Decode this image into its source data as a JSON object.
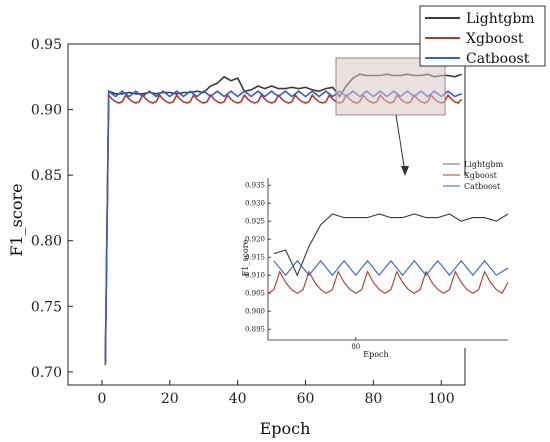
{
  "chart_data": [
    {
      "type": "line",
      "title": "",
      "xlabel": "Epoch",
      "ylabel": "F1_score",
      "xlim": [
        -10,
        107
      ],
      "ylim": [
        0.69,
        0.95
      ],
      "xticks": [
        "0",
        "20",
        "40",
        "60",
        "80",
        "100"
      ],
      "yticks": [
        "0.70",
        "0.75",
        "0.80",
        "0.85",
        "0.90",
        "0.95"
      ],
      "grid": false,
      "legend": "top-right",
      "series": [
        {
          "name": "Lightgbm",
          "color": "#3a3a3a",
          "x": [
            1,
            2,
            4,
            6,
            8,
            10,
            12,
            14,
            16,
            18,
            20,
            22,
            24,
            26,
            28,
            30,
            32,
            34,
            36,
            38,
            40,
            42,
            44,
            46,
            48,
            50,
            52,
            54,
            56,
            58,
            60,
            62,
            64,
            66,
            68,
            70,
            72,
            74,
            76,
            78,
            80,
            82,
            84,
            86,
            88,
            90,
            92,
            94,
            96,
            98,
            100,
            102,
            104,
            106
          ],
          "values": [
            0.706,
            0.914,
            0.912,
            0.912,
            0.913,
            0.912,
            0.912,
            0.913,
            0.912,
            0.913,
            0.913,
            0.912,
            0.913,
            0.913,
            0.914,
            0.913,
            0.918,
            0.92,
            0.925,
            0.922,
            0.924,
            0.914,
            0.915,
            0.918,
            0.916,
            0.918,
            0.916,
            0.916,
            0.917,
            0.916,
            0.917,
            0.915,
            0.914,
            0.916,
            0.917,
            0.91,
            0.918,
            0.924,
            0.927,
            0.926,
            0.926,
            0.926,
            0.927,
            0.926,
            0.926,
            0.927,
            0.926,
            0.926,
            0.927,
            0.925,
            0.926,
            0.926,
            0.925,
            0.927
          ]
        },
        {
          "name": "Xgboost",
          "color": "#b03c30",
          "x": [
            1,
            2,
            3,
            4,
            5,
            6,
            7,
            8,
            9,
            10,
            11,
            12,
            13,
            14,
            15,
            16,
            17,
            18,
            19,
            20,
            21,
            22,
            23,
            24,
            25,
            26,
            27,
            28,
            29,
            30,
            31,
            32,
            33,
            34,
            35,
            36,
            37,
            38,
            39,
            40,
            41,
            42,
            43,
            44,
            45,
            46,
            47,
            48,
            49,
            50,
            51,
            52,
            53,
            54,
            55,
            56,
            57,
            58,
            59,
            60,
            61,
            62,
            63,
            64,
            65,
            66,
            67,
            68,
            69,
            70,
            71,
            72,
            73,
            74,
            75,
            76,
            77,
            78,
            79,
            80,
            81,
            82,
            83,
            84,
            85,
            86,
            87,
            88,
            89,
            90,
            91,
            92,
            93,
            94,
            95,
            96,
            97,
            98,
            99,
            100,
            101,
            102,
            103,
            104,
            105,
            106
          ],
          "values": [
            0.705,
            0.911,
            0.908,
            0.906,
            0.905,
            0.906,
            0.911,
            0.908,
            0.906,
            0.905,
            0.906,
            0.911,
            0.908,
            0.906,
            0.905,
            0.906,
            0.911,
            0.908,
            0.906,
            0.905,
            0.906,
            0.911,
            0.908,
            0.906,
            0.905,
            0.906,
            0.911,
            0.908,
            0.906,
            0.905,
            0.906,
            0.911,
            0.908,
            0.906,
            0.905,
            0.906,
            0.911,
            0.908,
            0.906,
            0.905,
            0.906,
            0.911,
            0.908,
            0.906,
            0.905,
            0.906,
            0.911,
            0.908,
            0.906,
            0.905,
            0.906,
            0.911,
            0.908,
            0.906,
            0.905,
            0.906,
            0.911,
            0.908,
            0.906,
            0.905,
            0.906,
            0.911,
            0.908,
            0.906,
            0.905,
            0.906,
            0.911,
            0.908,
            0.906,
            0.905,
            0.906,
            0.911,
            0.908,
            0.906,
            0.905,
            0.906,
            0.911,
            0.908,
            0.906,
            0.905,
            0.906,
            0.911,
            0.908,
            0.906,
            0.905,
            0.906,
            0.911,
            0.908,
            0.906,
            0.905,
            0.906,
            0.911,
            0.908,
            0.906,
            0.905,
            0.906,
            0.911,
            0.908,
            0.906,
            0.905,
            0.906,
            0.911,
            0.908,
            0.906,
            0.905,
            0.908
          ]
        },
        {
          "name": "Catboost",
          "color": "#3a5fcd",
          "x": [
            1,
            2,
            4,
            6,
            8,
            10,
            12,
            14,
            16,
            18,
            20,
            22,
            24,
            26,
            28,
            30,
            32,
            34,
            36,
            38,
            40,
            42,
            44,
            46,
            48,
            50,
            52,
            54,
            56,
            58,
            60,
            62,
            64,
            66,
            68,
            70,
            72,
            74,
            76,
            78,
            80,
            82,
            84,
            86,
            88,
            90,
            92,
            94,
            96,
            98,
            100,
            102,
            104,
            106
          ],
          "values": [
            0.706,
            0.914,
            0.91,
            0.914,
            0.91,
            0.914,
            0.91,
            0.914,
            0.91,
            0.914,
            0.91,
            0.914,
            0.91,
            0.914,
            0.91,
            0.914,
            0.91,
            0.914,
            0.91,
            0.914,
            0.91,
            0.914,
            0.91,
            0.914,
            0.91,
            0.914,
            0.91,
            0.914,
            0.91,
            0.914,
            0.91,
            0.914,
            0.91,
            0.914,
            0.91,
            0.914,
            0.91,
            0.914,
            0.91,
            0.914,
            0.91,
            0.914,
            0.91,
            0.914,
            0.91,
            0.914,
            0.91,
            0.914,
            0.91,
            0.914,
            0.91,
            0.914,
            0.91,
            0.912
          ]
        }
      ]
    },
    {
      "type": "line",
      "title": "",
      "xlabel": "Epoch",
      "ylabel": "F1_score",
      "xlim": [
        65,
        106
      ],
      "ylim": [
        0.892,
        0.937
      ],
      "xticks": [
        "80"
      ],
      "yticks": [
        "0.895",
        "0.900",
        "0.905",
        "0.910",
        "0.915",
        "0.920",
        "0.925",
        "0.930",
        "0.935"
      ],
      "grid": false,
      "legend": "top-right",
      "series_names": [
        "Lightgbm",
        "Xgboost",
        "Catboost"
      ],
      "note": "zoomed view of the main chart over the shaded region"
    }
  ]
}
